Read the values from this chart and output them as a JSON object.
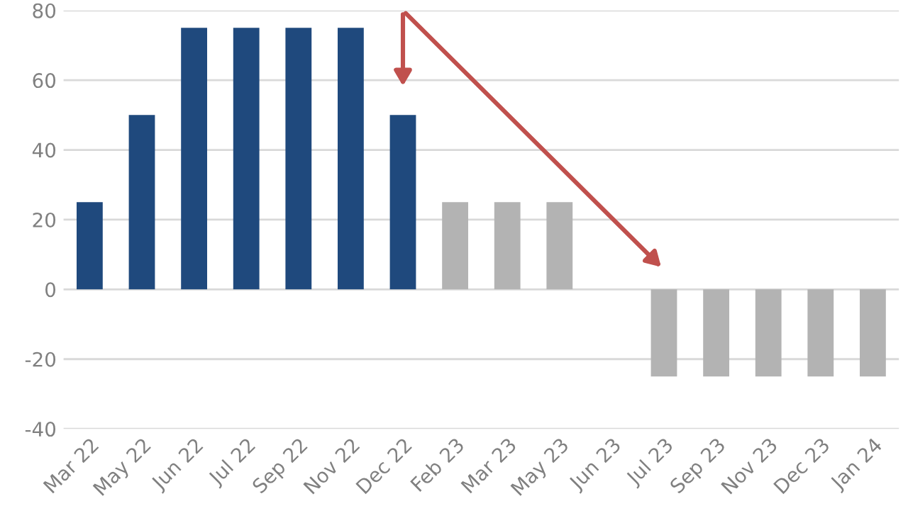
{
  "chart_data": {
    "type": "bar",
    "categories": [
      "Mar 22",
      "May 22",
      "Jun 22",
      "Jul 22",
      "Sep 22",
      "Nov 22",
      "Dec 22",
      "Feb 23",
      "Mar 23",
      "May 23",
      "Jun 23",
      "Jul 23",
      "Sep 23",
      "Nov 23",
      "Dec 23",
      "Jan 24"
    ],
    "values": [
      25,
      50,
      75,
      75,
      75,
      75,
      50,
      25,
      25,
      25,
      0,
      -25,
      -25,
      -25,
      -25,
      -25
    ],
    "colors": [
      "#1f497d",
      "#1f497d",
      "#1f497d",
      "#1f497d",
      "#1f497d",
      "#1f497d",
      "#1f497d",
      "#b3b3b3",
      "#b3b3b3",
      "#b3b3b3",
      "#b3b3b3",
      "#b3b3b3",
      "#b3b3b3",
      "#b3b3b3",
      "#b3b3b3",
      "#b3b3b3"
    ],
    "ylim": [
      -40,
      80
    ],
    "yticks": [
      -40,
      -20,
      0,
      20,
      40,
      60,
      80
    ],
    "grid": "y",
    "legend": false
  }
}
